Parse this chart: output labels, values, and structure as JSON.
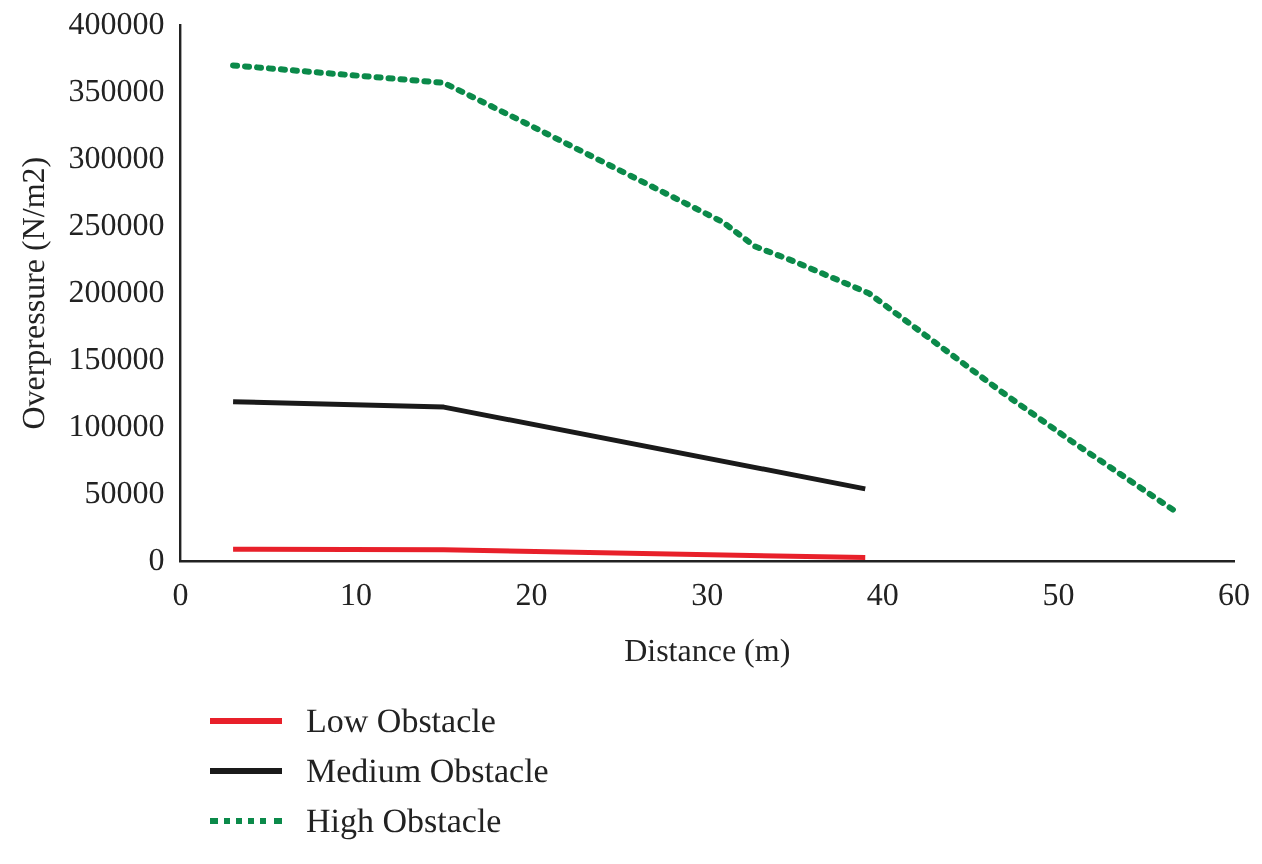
{
  "chart_data": {
    "type": "line",
    "xlabel": "Distance (m)",
    "ylabel": "Overpressure (N/m2)",
    "xlim": [
      0,
      60
    ],
    "xticks": [
      0,
      10,
      20,
      30,
      40,
      50,
      60
    ],
    "ylim": [
      0,
      400000
    ],
    "yticks": [
      0,
      50000,
      100000,
      150000,
      200000,
      250000,
      300000,
      350000,
      400000
    ],
    "grid": false,
    "legend": "bottom",
    "marker": "none",
    "series": [
      {
        "name": "Low Obstacle",
        "color": "#e8202a",
        "line_style": "solid",
        "x": [
          3,
          15,
          39
        ],
        "values": [
          9000,
          8600,
          2700
        ]
      },
      {
        "name": "Medium Obstacle",
        "color": "#1a1a1a",
        "line_style": "solid",
        "x": [
          3,
          15,
          39
        ],
        "values": [
          119000,
          115000,
          54000
        ]
      },
      {
        "name": "High Obstacle",
        "color": "#0b8a4a",
        "line_style": "dotted",
        "x": [
          3,
          15,
          19.8,
          30.9,
          32.7,
          34.9,
          39.2,
          46.7,
          50.7,
          56.8
        ],
        "values": [
          370000,
          357000,
          326000,
          253000,
          235000,
          224000,
          200000,
          127000,
          90000,
          36000
        ]
      }
    ]
  }
}
